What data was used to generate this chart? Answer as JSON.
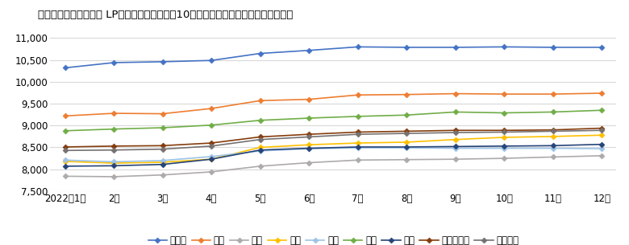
{
  "title": "石油情報センター調べ LPガス平均小売価格　10㎥使用時の税込み請求額　単位：円",
  "months": [
    "2022年1月",
    "2月",
    "3月",
    "4月",
    "5月",
    "6月",
    "7月",
    "8月",
    "9月",
    "10月",
    "11月",
    "12月"
  ],
  "series_order": [
    "北海道",
    "東北",
    "関東",
    "中部",
    "近畿",
    "中国",
    "四国",
    "九州・沖縄",
    "全国平均"
  ],
  "series": {
    "北海道": [
      10320,
      10440,
      10460,
      10490,
      10650,
      10720,
      10800,
      10790,
      10790,
      10800,
      10790,
      10790
    ],
    "東北": [
      9220,
      9280,
      9270,
      9390,
      9570,
      9600,
      9700,
      9710,
      9730,
      9720,
      9720,
      9740
    ],
    "関東": [
      7840,
      7830,
      7870,
      7940,
      8070,
      8150,
      8210,
      8220,
      8230,
      8250,
      8280,
      8310
    ],
    "中部": [
      8180,
      8140,
      8160,
      8230,
      8500,
      8560,
      8600,
      8620,
      8680,
      8730,
      8750,
      8780
    ],
    "近畿": [
      8210,
      8170,
      8200,
      8290,
      8420,
      8470,
      8490,
      8490,
      8480,
      8480,
      8480,
      8470
    ],
    "中国": [
      8880,
      8920,
      8950,
      9010,
      9120,
      9170,
      9210,
      9240,
      9310,
      9290,
      9310,
      9350
    ],
    "四国": [
      8070,
      8080,
      8110,
      8230,
      8440,
      8480,
      8510,
      8510,
      8520,
      8530,
      8540,
      8570
    ],
    "九州・沖縄": [
      8510,
      8530,
      8540,
      8600,
      8740,
      8800,
      8850,
      8870,
      8890,
      8890,
      8900,
      8940
    ],
    "全国平均": [
      8430,
      8440,
      8460,
      8530,
      8680,
      8740,
      8800,
      8820,
      8840,
      8850,
      8870,
      8890
    ]
  },
  "colors": {
    "北海道": "#4472C4",
    "東北": "#ED7D31",
    "関東": "#AEAAAA",
    "中部": "#FFC000",
    "近畿": "#9DC3E6",
    "中国": "#70AD47",
    "四国": "#264478",
    "九州・沖縄": "#843C0C",
    "全国平均": "#767171"
  },
  "ylim": [
    7500,
    11200
  ],
  "yticks": [
    7500,
    8000,
    8500,
    9000,
    9500,
    10000,
    10500,
    11000
  ],
  "background_color": "#FFFFFF",
  "grid_color": "#D9D9D9",
  "title_fontsize": 9.5,
  "axis_fontsize": 8.5,
  "legend_fontsize": 8.5
}
